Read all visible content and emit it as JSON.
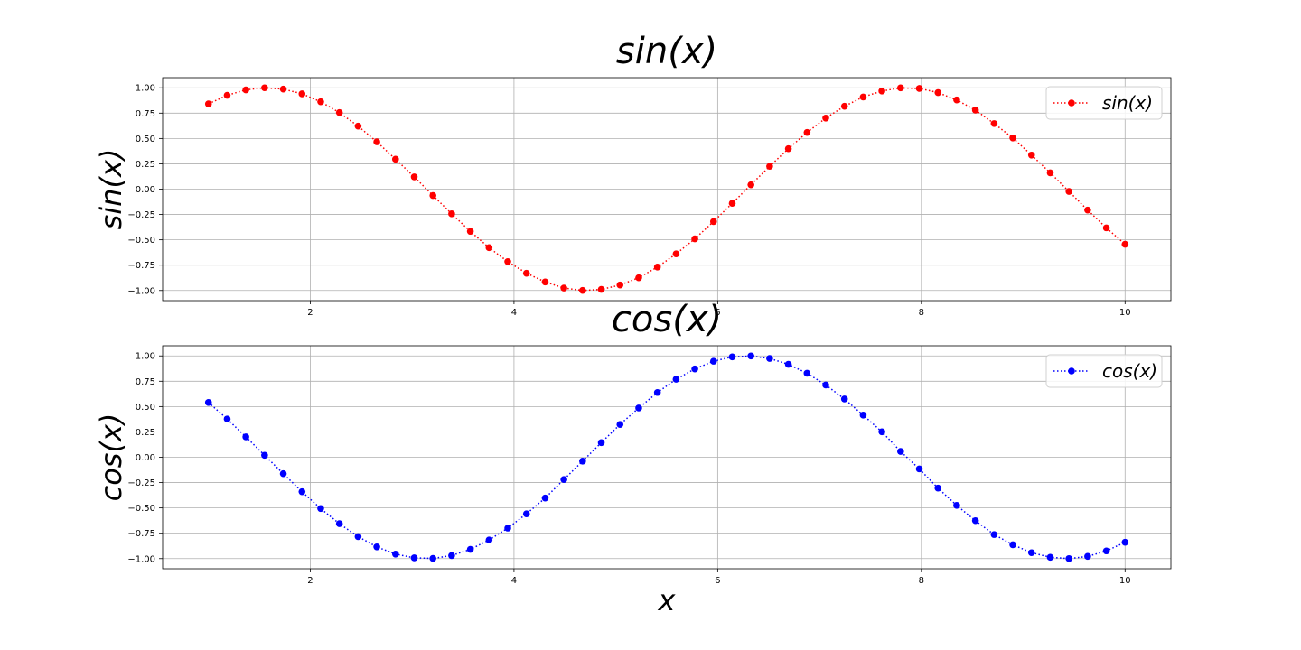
{
  "chart_data": [
    {
      "type": "line",
      "title": "sin(x)",
      "ylabel": "sin(x)",
      "xlabel": "",
      "xlim": [
        0.55,
        10.45
      ],
      "ylim": [
        -1.1,
        1.1
      ],
      "xticks": [
        2,
        4,
        6,
        8,
        10
      ],
      "xtick_labels": [
        "2",
        "4",
        "6",
        "8",
        "10"
      ],
      "yticks": [
        1.0,
        0.75,
        0.5,
        0.25,
        0.0,
        -0.25,
        -0.5,
        -0.75,
        -1.0
      ],
      "ytick_labels": [
        "1.00",
        "0.75",
        "0.50",
        "0.25",
        "0.00",
        "−0.25",
        "−0.50",
        "−0.75",
        "−1.00"
      ],
      "grid": true,
      "legend_position": "top-right",
      "series": [
        {
          "name": "sin(x)",
          "color": "#ff0000",
          "linestyle": "dotted",
          "marker": "circle",
          "x": [
            1.0,
            1.1837,
            1.3673,
            1.551,
            1.7347,
            1.9184,
            2.102,
            2.2857,
            2.4694,
            2.6531,
            2.8367,
            3.0204,
            3.2041,
            3.3878,
            3.5714,
            3.7551,
            3.9388,
            4.1224,
            4.3061,
            4.4898,
            4.6735,
            4.8571,
            5.0408,
            5.2245,
            5.4082,
            5.5918,
            5.7755,
            5.9592,
            6.1429,
            6.3265,
            6.5102,
            6.6939,
            6.8776,
            7.0612,
            7.2449,
            7.4286,
            7.6122,
            7.7959,
            7.9796,
            8.1633,
            8.3469,
            8.5306,
            8.7143,
            8.898,
            9.0816,
            9.2653,
            9.449,
            9.6327,
            9.8163,
            10.0
          ],
          "y": [
            0.8415,
            0.9262,
            0.9795,
            0.9998,
            0.9867,
            0.9405,
            0.8625,
            0.7551,
            0.6218,
            0.4669,
            0.2955,
            0.1209,
            -0.0625,
            -0.2433,
            -0.4165,
            -0.5776,
            -0.7149,
            -0.8297,
            -0.9155,
            -0.9756,
            -0.9995,
            -0.9896,
            -0.9461,
            -0.8742,
            -0.7692,
            -0.6387,
            -0.4908,
            -0.3199,
            -0.14,
            0.0429,
            0.2249,
            0.399,
            0.5597,
            0.7012,
            0.818,
            0.9095,
            0.9679,
            0.9988,
            0.9934,
            0.9524,
            0.8798,
            0.7801,
            0.6469,
            0.5051,
            0.3361,
            0.1609,
            -0.0226,
            -0.2063,
            -0.3819,
            -0.544
          ]
        }
      ]
    },
    {
      "type": "line",
      "title": "cos(x)",
      "ylabel": "cos(x)",
      "xlabel": "x",
      "xlim": [
        0.55,
        10.45
      ],
      "ylim": [
        -1.1,
        1.1
      ],
      "xticks": [
        2,
        4,
        6,
        8,
        10
      ],
      "xtick_labels": [
        "2",
        "4",
        "6",
        "8",
        "10"
      ],
      "yticks": [
        1.0,
        0.75,
        0.5,
        0.25,
        0.0,
        -0.25,
        -0.5,
        -0.75,
        -1.0
      ],
      "ytick_labels": [
        "1.00",
        "0.75",
        "0.50",
        "0.25",
        "0.00",
        "−0.25",
        "−0.50",
        "−0.75",
        "−1.00"
      ],
      "grid": true,
      "legend_position": "top-right",
      "series": [
        {
          "name": "cos(x)",
          "color": "#0000ff",
          "linestyle": "dotted",
          "marker": "circle",
          "x": [
            1.0,
            1.1837,
            1.3673,
            1.551,
            1.7347,
            1.9184,
            2.102,
            2.2857,
            2.4694,
            2.6531,
            2.8367,
            3.0204,
            3.2041,
            3.3878,
            3.5714,
            3.7551,
            3.9388,
            4.1224,
            4.3061,
            4.4898,
            4.6735,
            4.8571,
            5.0408,
            5.2245,
            5.4082,
            5.5918,
            5.7755,
            5.9592,
            6.1429,
            6.3265,
            6.5102,
            6.6939,
            6.8776,
            7.0612,
            7.2449,
            7.4286,
            7.6122,
            7.7959,
            7.9796,
            8.1633,
            8.3469,
            8.5306,
            8.7143,
            8.898,
            9.0816,
            9.2653,
            9.449,
            9.6327,
            9.8163,
            10.0
          ],
          "y": [
            0.5403,
            0.3775,
            0.2014,
            0.0198,
            -0.1624,
            -0.3399,
            -0.506,
            -0.6555,
            -0.7832,
            -0.8843,
            -0.9555,
            -0.9927,
            -0.998,
            -0.97,
            -0.9091,
            -0.8163,
            -0.6992,
            -0.5582,
            -0.4024,
            -0.2196,
            -0.0388,
            0.1439,
            0.3238,
            0.4856,
            0.639,
            0.7695,
            0.8713,
            0.9474,
            0.9902,
            0.9991,
            0.9744,
            0.917,
            0.8287,
            0.713,
            0.5752,
            0.4157,
            0.2512,
            0.0573,
            -0.1147,
            -0.3048,
            -0.4752,
            -0.6257,
            -0.7627,
            -0.8631,
            -0.9418,
            -0.987,
            -0.9997,
            -0.9785,
            -0.9242,
            -0.8391
          ]
        }
      ]
    }
  ]
}
